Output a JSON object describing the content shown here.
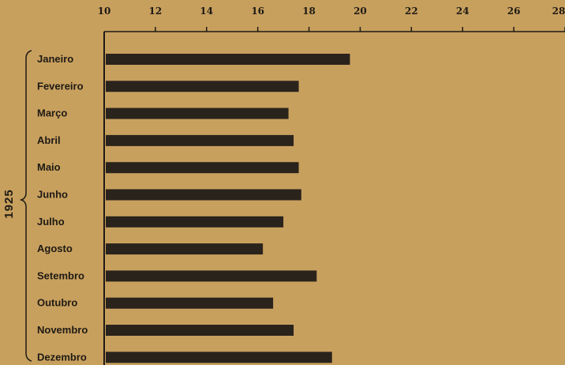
{
  "chart_data": {
    "type": "bar",
    "orientation": "horizontal",
    "group_label": "1925",
    "categories": [
      "Janeiro",
      "Fevereiro",
      "Março",
      "Abril",
      "Maio",
      "Junho",
      "Julho",
      "Agosto",
      "Setembro",
      "Outubro",
      "Novembro",
      "Dezembro"
    ],
    "values": [
      19.6,
      17.6,
      17.2,
      17.4,
      17.6,
      17.7,
      17.0,
      16.2,
      18.3,
      16.6,
      17.4,
      18.9
    ],
    "xlim": [
      10,
      28
    ],
    "xticks": [
      "10",
      "12",
      "14",
      "16",
      "18",
      "20",
      "22",
      "24",
      "26",
      "28"
    ],
    "title": "",
    "xlabel": "",
    "ylabel": "",
    "grid": false,
    "colors": {
      "background": "#c8a05e",
      "bar": "#2a231c",
      "ink": "#1e1a14"
    }
  }
}
